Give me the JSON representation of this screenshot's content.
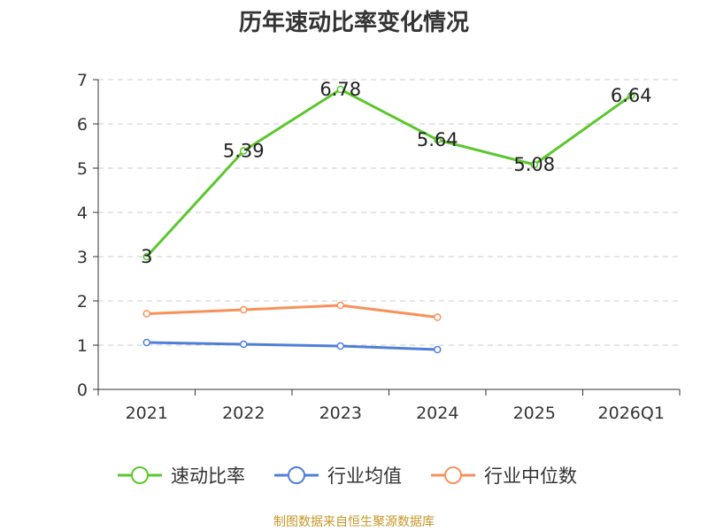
{
  "chart_data": {
    "type": "line",
    "title": "历年速动比率变化情况",
    "categories": [
      "2021",
      "2022",
      "2023",
      "2024",
      "2025",
      "2026Q1"
    ],
    "y_ticks": [
      "0",
      "1",
      "2",
      "3",
      "4",
      "5",
      "6",
      "7"
    ],
    "ylim": [
      0,
      7
    ],
    "grid": true,
    "legend_position": "bottom",
    "series": [
      {
        "name": "速动比率",
        "color": "#5cc72e",
        "values": [
          3,
          5.39,
          6.78,
          5.64,
          5.08,
          6.64
        ],
        "labels": [
          "3",
          "5.39",
          "6.78",
          "5.64",
          "5.08",
          "6.64"
        ]
      },
      {
        "name": "行业均值",
        "color": "#4f7fd8",
        "values": [
          1.06,
          1.02,
          0.98,
          0.9,
          null,
          null
        ]
      },
      {
        "name": "行业中位数",
        "color": "#f7915a",
        "values": [
          1.71,
          1.8,
          1.9,
          1.63,
          null,
          null
        ]
      }
    ],
    "source": "制图数据来自恒生聚源数据库",
    "source_color": "#c8962a"
  }
}
